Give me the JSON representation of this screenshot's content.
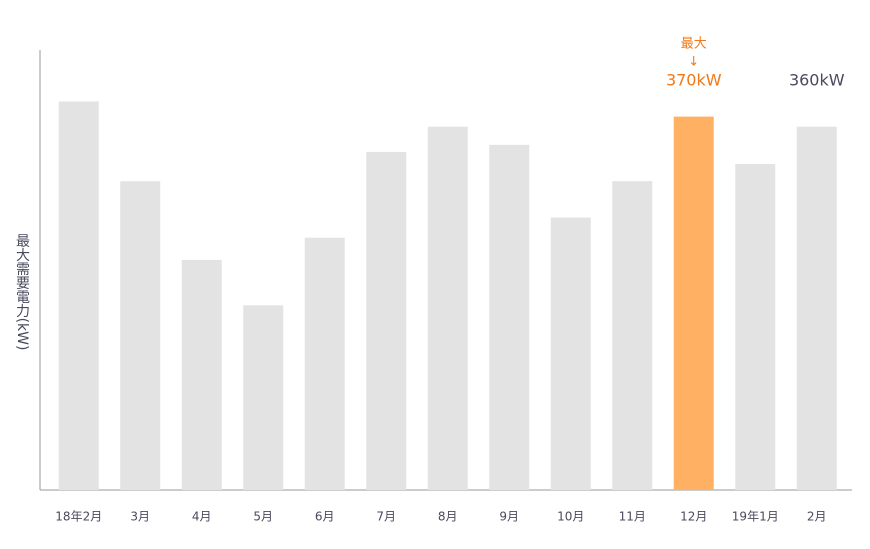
{
  "chart_data": {
    "type": "bar",
    "y_label": "最大需要電力(kW)",
    "categories": [
      "18年2月",
      "3月",
      "4月",
      "5月",
      "6月",
      "7月",
      "8月",
      "9月",
      "10月",
      "11月",
      "12月",
      "19年1月",
      "2月"
    ],
    "values": [
      385,
      306,
      228,
      183,
      250,
      335,
      360,
      342,
      270,
      306,
      370,
      323,
      360
    ],
    "colors": [
      "#e3e3e3",
      "#e3e3e3",
      "#e3e3e3",
      "#e3e3e3",
      "#e3e3e3",
      "#e3e3e3",
      "#e3e3e3",
      "#e3e3e3",
      "#e3e3e3",
      "#e3e3e3",
      "#ffb062",
      "#e3e3e3",
      "#e3e3e3"
    ],
    "value_labels": [
      null,
      null,
      null,
      null,
      null,
      null,
      null,
      null,
      null,
      null,
      "370kW",
      null,
      "360kW"
    ],
    "value_label_colors": [
      null,
      null,
      null,
      null,
      null,
      null,
      null,
      null,
      null,
      null,
      "#f07818",
      null,
      "#4a4a5e"
    ],
    "annotation": {
      "text": "最大",
      "arrow": "↓",
      "index": 10,
      "color": "#f07818"
    },
    "ylim": [
      0,
      436
    ]
  }
}
